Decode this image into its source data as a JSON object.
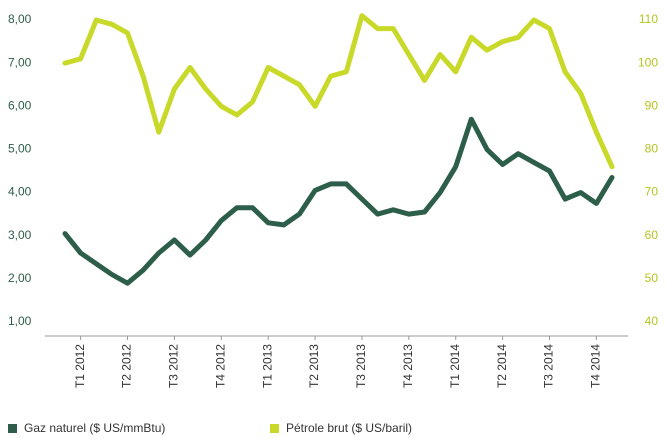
{
  "chart_data": {
    "type": "line",
    "categories": [
      null,
      "T1 2012",
      null,
      null,
      "T2 2012",
      null,
      null,
      "T3 2012",
      null,
      null,
      "T4 2012",
      null,
      null,
      "T1 2013",
      null,
      null,
      "T2 2013",
      null,
      null,
      "T3 2013",
      null,
      null,
      "T4 2013",
      null,
      null,
      "T1 2014",
      null,
      null,
      "T2 2014",
      null,
      null,
      "T3 2014",
      null,
      null,
      "T4 2014",
      null
    ],
    "series": [
      {
        "name": "Gaz naturel ($ US/mmBtu)",
        "color": "#2d5e4a",
        "values": [
          3.05,
          2.6,
          2.35,
          2.1,
          1.9,
          2.2,
          2.6,
          2.9,
          2.55,
          2.9,
          3.35,
          3.65,
          3.65,
          3.3,
          3.25,
          3.5,
          4.05,
          4.2,
          4.2,
          3.85,
          3.5,
          3.6,
          3.5,
          3.55,
          4.0,
          4.6,
          5.7,
          5.0,
          4.65,
          4.9,
          4.7,
          4.5,
          3.85,
          4.0,
          3.75,
          4.35
        ]
      },
      {
        "name": "Pétrole brut ($ US/baril)",
        "color": "#c8d92a",
        "axis": "y2",
        "values": [
          100,
          101,
          110,
          109,
          107,
          97,
          84,
          94,
          99,
          94,
          90,
          88,
          91,
          99,
          97,
          95,
          90,
          97,
          98,
          111,
          108,
          108,
          102,
          96,
          102,
          98,
          106,
          103,
          105,
          106,
          110,
          108,
          98,
          93,
          84,
          76
        ]
      }
    ],
    "ylim": [
      1,
      8
    ],
    "yticks": [
      {
        "value": 1,
        "label": "1,00"
      },
      {
        "value": 2,
        "label": "2,00"
      },
      {
        "value": 3,
        "label": "3,00"
      },
      {
        "value": 4,
        "label": "4,00"
      },
      {
        "value": 5,
        "label": "5,00"
      },
      {
        "value": 6,
        "label": "6,00"
      },
      {
        "value": 7,
        "label": "7,00"
      },
      {
        "value": 8,
        "label": "8,00"
      }
    ],
    "y2lim": [
      40,
      110
    ],
    "y2ticks": [
      40,
      50,
      60,
      70,
      80,
      90,
      100,
      110
    ],
    "legend": "bottom"
  }
}
